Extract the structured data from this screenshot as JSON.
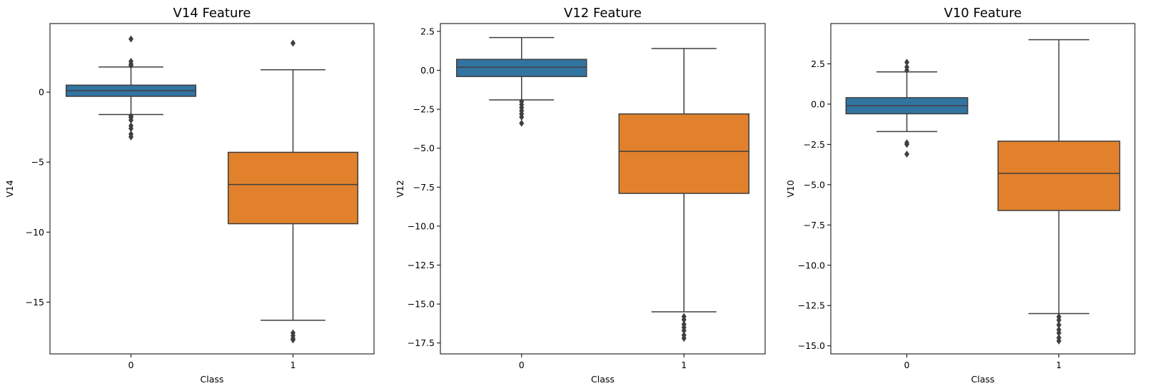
{
  "chart_data": [
    {
      "type": "box",
      "title": "V14 Feature",
      "xlabel": "Class",
      "ylabel": "V14",
      "categories": [
        "0",
        "1"
      ],
      "yticks": [
        0,
        -5,
        -10,
        -15
      ],
      "ytick_labels": [
        "0",
        "−5",
        "−10",
        "−15"
      ],
      "ylim": [
        -18.7,
        4.9
      ],
      "boxes": [
        {
          "category": "0",
          "color": "#3274a1",
          "q1": -0.3,
          "median": 0.1,
          "q3": 0.5,
          "whisker_low": -1.6,
          "whisker_high": 1.8,
          "outliers": [
            3.8,
            2.2,
            2.0,
            1.9,
            -1.7,
            -1.8,
            -2.0,
            -2.4,
            -2.6,
            -3.0,
            -3.2
          ]
        },
        {
          "category": "1",
          "color": "#e1812c",
          "q1": -9.4,
          "median": -6.6,
          "q3": -4.3,
          "whisker_low": -16.3,
          "whisker_high": 1.6,
          "outliers": [
            3.5,
            -17.2,
            -17.4,
            -17.6,
            -17.7
          ]
        }
      ]
    },
    {
      "type": "box",
      "title": "V12 Feature",
      "xlabel": "Class",
      "ylabel": "V12",
      "categories": [
        "0",
        "1"
      ],
      "yticks": [
        2.5,
        0,
        -2.5,
        -5,
        -7.5,
        -10,
        -12.5,
        -15,
        -17.5
      ],
      "ytick_labels": [
        "2.5",
        "0.0",
        "−2.5",
        "−5.0",
        "−7.5",
        "−10.0",
        "−12.5",
        "−15.0",
        "−17.5"
      ],
      "ylim": [
        -18.2,
        3.0
      ],
      "boxes": [
        {
          "category": "0",
          "color": "#3274a1",
          "q1": -0.4,
          "median": 0.2,
          "q3": 0.7,
          "whisker_low": -1.9,
          "whisker_high": 2.1,
          "outliers": [
            -2.0,
            -2.2,
            -2.4,
            -2.6,
            -2.8,
            -3.0,
            -3.4
          ]
        },
        {
          "category": "1",
          "color": "#e1812c",
          "q1": -7.9,
          "median": -5.2,
          "q3": -2.8,
          "whisker_low": -15.5,
          "whisker_high": 1.4,
          "outliers": [
            -15.8,
            -16.0,
            -16.3,
            -16.5,
            -16.7,
            -17.0,
            -17.2
          ]
        }
      ]
    },
    {
      "type": "box",
      "title": "V10 Feature",
      "xlabel": "Class",
      "ylabel": "V10",
      "categories": [
        "0",
        "1"
      ],
      "yticks": [
        2.5,
        0,
        -2.5,
        -5,
        -7.5,
        -10,
        -12.5,
        -15
      ],
      "ytick_labels": [
        "2.5",
        "0.0",
        "−2.5",
        "−5.0",
        "−7.5",
        "−10.0",
        "−12.5",
        "−15.0"
      ],
      "ylim": [
        -15.5,
        5.0
      ],
      "boxes": [
        {
          "category": "0",
          "color": "#3274a1",
          "q1": -0.6,
          "median": -0.1,
          "q3": 0.4,
          "whisker_low": -1.7,
          "whisker_high": 2.0,
          "outliers": [
            2.6,
            2.3,
            2.1,
            -2.4,
            -2.5,
            -3.1
          ]
        },
        {
          "category": "1",
          "color": "#e1812c",
          "q1": -6.6,
          "median": -4.3,
          "q3": -2.3,
          "whisker_low": -13.0,
          "whisker_high": 4.0,
          "outliers": [
            -13.2,
            -13.4,
            -13.7,
            -14.0,
            -14.2,
            -14.5,
            -14.7
          ]
        }
      ]
    }
  ]
}
